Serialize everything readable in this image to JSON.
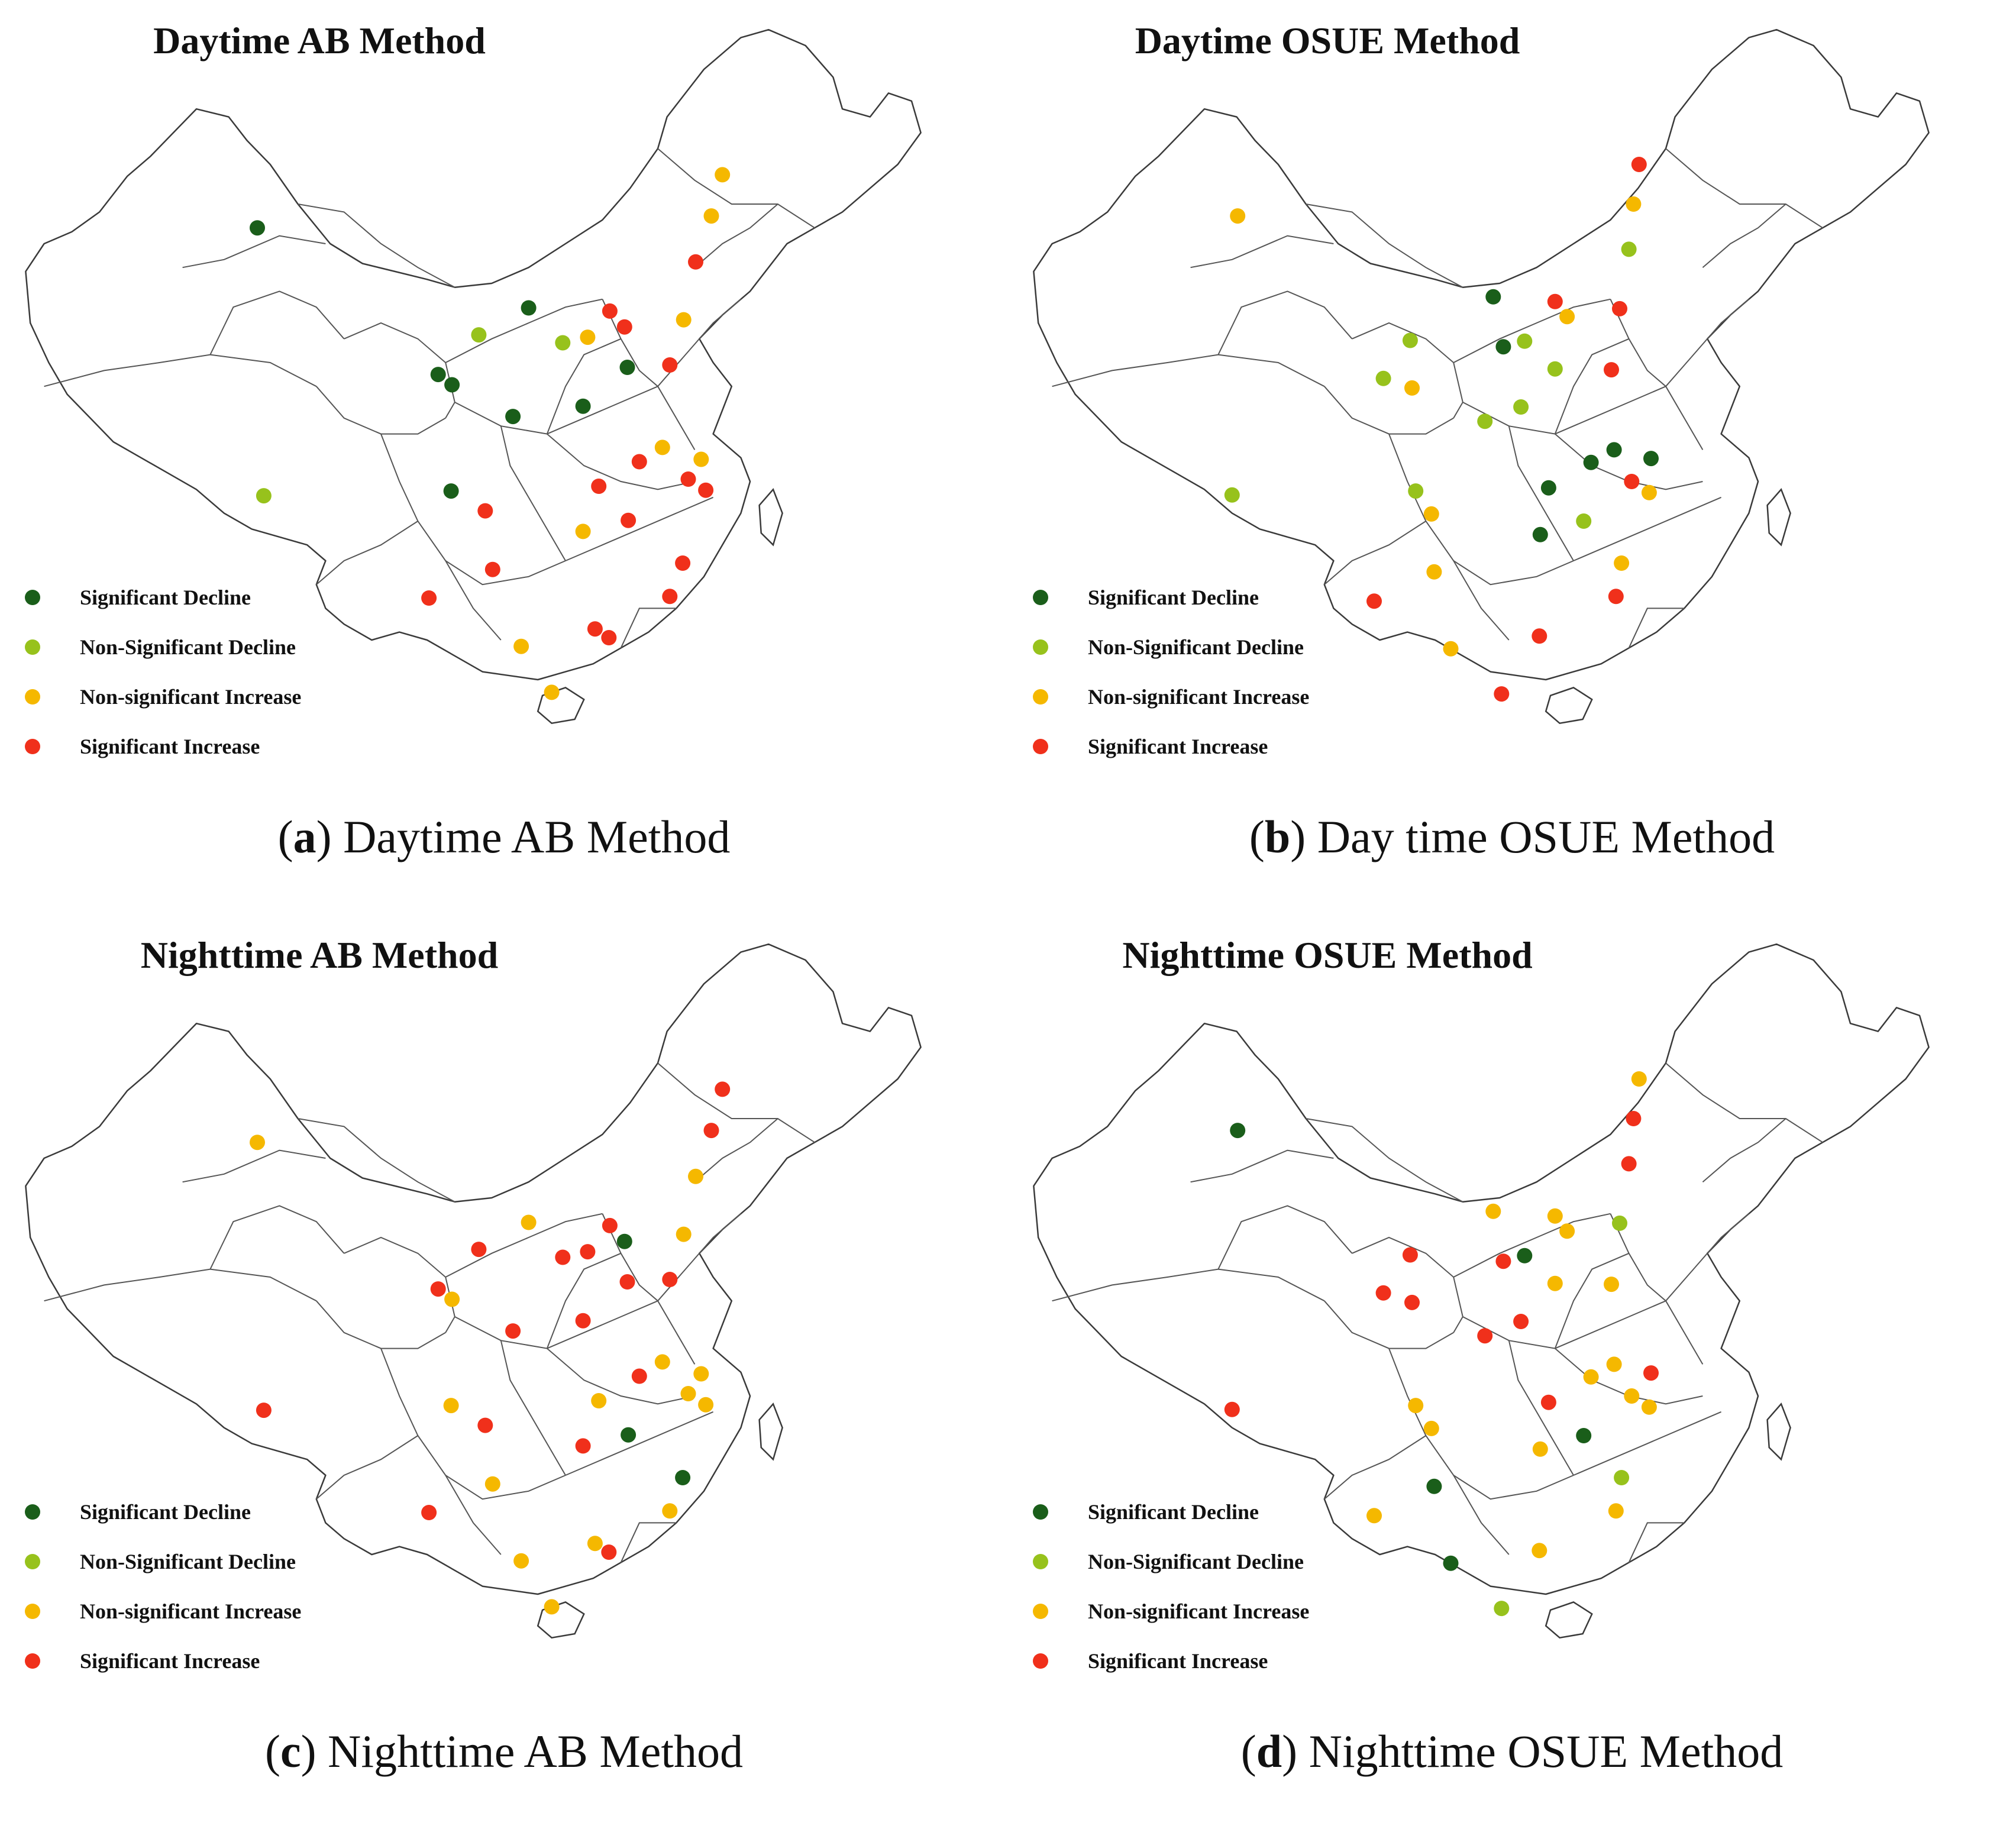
{
  "colors": {
    "significant_decline": "#1a5e1a",
    "non_significant_decline": "#97c21c",
    "non_significant_increase": "#f5b800",
    "significant_increase": "#f0301b"
  },
  "legend": {
    "significant_decline": "Significant Decline",
    "non_significant_decline": "Non-Significant Decline",
    "non_significant_increase": "Non-significant Increase",
    "significant_increase": "Significant Increase"
  },
  "panels": [
    {
      "id": "a",
      "map_title": "Daytime AB Method",
      "caption_letter": "a",
      "caption_text": " Daytime AB Method",
      "stations": [
        [
          "green",
          0.266,
          0.28
        ],
        [
          "lime",
          0.273,
          0.618
        ],
        [
          "green",
          0.462,
          0.465
        ],
        [
          "green",
          0.477,
          0.478
        ],
        [
          "lime",
          0.506,
          0.415
        ],
        [
          "green",
          0.56,
          0.381
        ],
        [
          "green",
          0.543,
          0.518
        ],
        [
          "green",
          0.476,
          0.612
        ],
        [
          "lime",
          0.597,
          0.425
        ],
        [
          "orange",
          0.624,
          0.418
        ],
        [
          "red",
          0.648,
          0.385
        ],
        [
          "red",
          0.664,
          0.405
        ],
        [
          "green",
          0.667,
          0.456
        ],
        [
          "green",
          0.619,
          0.505
        ],
        [
          "red",
          0.713,
          0.453
        ],
        [
          "orange",
          0.728,
          0.396
        ],
        [
          "red",
          0.741,
          0.323
        ],
        [
          "orange",
          0.758,
          0.265
        ],
        [
          "orange",
          0.77,
          0.213
        ],
        [
          "orange",
          0.705,
          0.557
        ],
        [
          "red",
          0.68,
          0.575
        ],
        [
          "orange",
          0.747,
          0.572
        ],
        [
          "red",
          0.733,
          0.597
        ],
        [
          "red",
          0.752,
          0.611
        ],
        [
          "red",
          0.636,
          0.606
        ],
        [
          "red",
          0.668,
          0.649
        ],
        [
          "orange",
          0.619,
          0.663
        ],
        [
          "red",
          0.513,
          0.637
        ],
        [
          "red",
          0.521,
          0.711
        ],
        [
          "red",
          0.452,
          0.747
        ],
        [
          "red",
          0.727,
          0.703
        ],
        [
          "red",
          0.713,
          0.745
        ],
        [
          "red",
          0.632,
          0.786
        ],
        [
          "red",
          0.647,
          0.797
        ],
        [
          "orange",
          0.552,
          0.808
        ],
        [
          "orange",
          0.585,
          0.866
        ]
      ]
    },
    {
      "id": "b",
      "map_title": "Daytime OSUE Method",
      "caption_letter": "b",
      "caption_text": " Day time OSUE Method",
      "stations": [
        [
          "orange",
          0.236,
          0.265
        ],
        [
          "lime",
          0.23,
          0.617
        ],
        [
          "lime",
          0.423,
          0.422
        ],
        [
          "lime",
          0.394,
          0.47
        ],
        [
          "orange",
          0.425,
          0.482
        ],
        [
          "lime",
          0.429,
          0.612
        ],
        [
          "green",
          0.513,
          0.367
        ],
        [
          "green",
          0.524,
          0.43
        ],
        [
          "lime",
          0.547,
          0.423
        ],
        [
          "red",
          0.58,
          0.373
        ],
        [
          "orange",
          0.593,
          0.392
        ],
        [
          "lime",
          0.58,
          0.458
        ],
        [
          "lime",
          0.543,
          0.506
        ],
        [
          "lime",
          0.504,
          0.524
        ],
        [
          "red",
          0.641,
          0.459
        ],
        [
          "red",
          0.65,
          0.382
        ],
        [
          "lime",
          0.66,
          0.307
        ],
        [
          "orange",
          0.665,
          0.25
        ],
        [
          "red",
          0.671,
          0.2
        ],
        [
          "green",
          0.644,
          0.56
        ],
        [
          "green",
          0.619,
          0.576
        ],
        [
          "green",
          0.684,
          0.571
        ],
        [
          "red",
          0.663,
          0.6
        ],
        [
          "orange",
          0.682,
          0.614
        ],
        [
          "green",
          0.573,
          0.608
        ],
        [
          "green",
          0.564,
          0.667
        ],
        [
          "lime",
          0.611,
          0.65
        ],
        [
          "orange",
          0.446,
          0.641
        ],
        [
          "orange",
          0.449,
          0.714
        ],
        [
          "red",
          0.384,
          0.751
        ],
        [
          "orange",
          0.652,
          0.703
        ],
        [
          "red",
          0.646,
          0.745
        ],
        [
          "red",
          0.563,
          0.795
        ],
        [
          "orange",
          0.467,
          0.811
        ],
        [
          "red",
          0.522,
          0.868
        ]
      ]
    },
    {
      "id": "c",
      "map_title": "Nighttime AB Method",
      "caption_letter": "c",
      "caption_text": " Nighttime AB Method",
      "stations": [
        [
          "orange",
          0.266,
          0.28
        ],
        [
          "red",
          0.273,
          0.618
        ],
        [
          "red",
          0.462,
          0.465
        ],
        [
          "orange",
          0.477,
          0.478
        ],
        [
          "red",
          0.506,
          0.415
        ],
        [
          "orange",
          0.56,
          0.381
        ],
        [
          "red",
          0.543,
          0.518
        ],
        [
          "orange",
          0.476,
          0.612
        ],
        [
          "red",
          0.597,
          0.425
        ],
        [
          "red",
          0.624,
          0.418
        ],
        [
          "red",
          0.648,
          0.385
        ],
        [
          "green",
          0.664,
          0.405
        ],
        [
          "red",
          0.667,
          0.456
        ],
        [
          "red",
          0.619,
          0.505
        ],
        [
          "red",
          0.713,
          0.453
        ],
        [
          "orange",
          0.728,
          0.396
        ],
        [
          "orange",
          0.741,
          0.323
        ],
        [
          "red",
          0.758,
          0.265
        ],
        [
          "red",
          0.77,
          0.213
        ],
        [
          "orange",
          0.705,
          0.557
        ],
        [
          "red",
          0.68,
          0.575
        ],
        [
          "orange",
          0.747,
          0.572
        ],
        [
          "orange",
          0.733,
          0.597
        ],
        [
          "orange",
          0.752,
          0.611
        ],
        [
          "orange",
          0.636,
          0.606
        ],
        [
          "green",
          0.668,
          0.649
        ],
        [
          "red",
          0.619,
          0.663
        ],
        [
          "red",
          0.513,
          0.637
        ],
        [
          "orange",
          0.521,
          0.711
        ],
        [
          "red",
          0.452,
          0.747
        ],
        [
          "green",
          0.727,
          0.703
        ],
        [
          "orange",
          0.713,
          0.745
        ],
        [
          "orange",
          0.632,
          0.786
        ],
        [
          "red",
          0.647,
          0.797
        ],
        [
          "orange",
          0.552,
          0.808
        ],
        [
          "orange",
          0.585,
          0.866
        ]
      ]
    },
    {
      "id": "d",
      "map_title": "Nighttime OSUE Method",
      "caption_letter": "d",
      "caption_text": " Nighttime OSUE Method",
      "stations": [
        [
          "green",
          0.236,
          0.265
        ],
        [
          "red",
          0.23,
          0.617
        ],
        [
          "red",
          0.423,
          0.422
        ],
        [
          "red",
          0.394,
          0.47
        ],
        [
          "red",
          0.425,
          0.482
        ],
        [
          "orange",
          0.429,
          0.612
        ],
        [
          "orange",
          0.513,
          0.367
        ],
        [
          "red",
          0.524,
          0.43
        ],
        [
          "green",
          0.547,
          0.423
        ],
        [
          "orange",
          0.58,
          0.373
        ],
        [
          "orange",
          0.593,
          0.392
        ],
        [
          "orange",
          0.58,
          0.458
        ],
        [
          "red",
          0.543,
          0.506
        ],
        [
          "red",
          0.504,
          0.524
        ],
        [
          "orange",
          0.641,
          0.459
        ],
        [
          "lime",
          0.65,
          0.382
        ],
        [
          "red",
          0.66,
          0.307
        ],
        [
          "red",
          0.665,
          0.25
        ],
        [
          "orange",
          0.671,
          0.2
        ],
        [
          "orange",
          0.644,
          0.56
        ],
        [
          "orange",
          0.619,
          0.576
        ],
        [
          "red",
          0.684,
          0.571
        ],
        [
          "orange",
          0.663,
          0.6
        ],
        [
          "orange",
          0.682,
          0.614
        ],
        [
          "red",
          0.573,
          0.608
        ],
        [
          "orange",
          0.564,
          0.667
        ],
        [
          "green",
          0.611,
          0.65
        ],
        [
          "orange",
          0.446,
          0.641
        ],
        [
          "green",
          0.449,
          0.714
        ],
        [
          "orange",
          0.384,
          0.751
        ],
        [
          "lime",
          0.652,
          0.703
        ],
        [
          "orange",
          0.646,
          0.745
        ],
        [
          "orange",
          0.563,
          0.795
        ],
        [
          "green",
          0.467,
          0.811
        ],
        [
          "lime",
          0.522,
          0.868
        ]
      ]
    }
  ]
}
